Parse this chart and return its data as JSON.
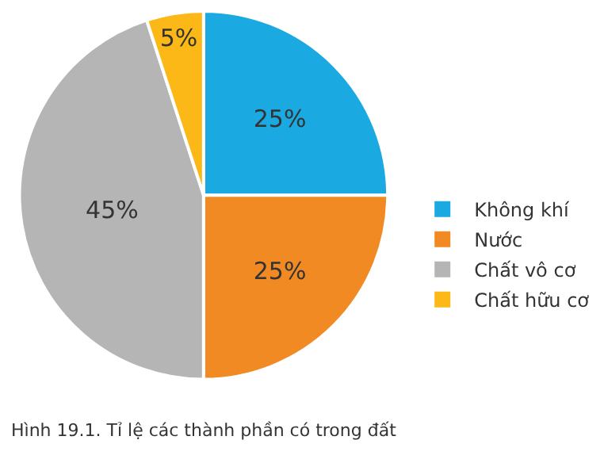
{
  "chart_data": {
    "type": "pie",
    "categories": [
      "Không khí",
      "Nước",
      "Chất vô cơ",
      "Chất hữu cơ"
    ],
    "values": [
      25,
      25,
      45,
      5
    ],
    "colors": [
      "#1ba9e1",
      "#f28a24",
      "#b5b5b5",
      "#fbb817"
    ],
    "value_labels": [
      "25%",
      "25%",
      "45%",
      "5%"
    ],
    "legend": "right",
    "annotations": [
      "Hình 19.1. Tỉ lệ các thành phần có trong đất"
    ]
  }
}
